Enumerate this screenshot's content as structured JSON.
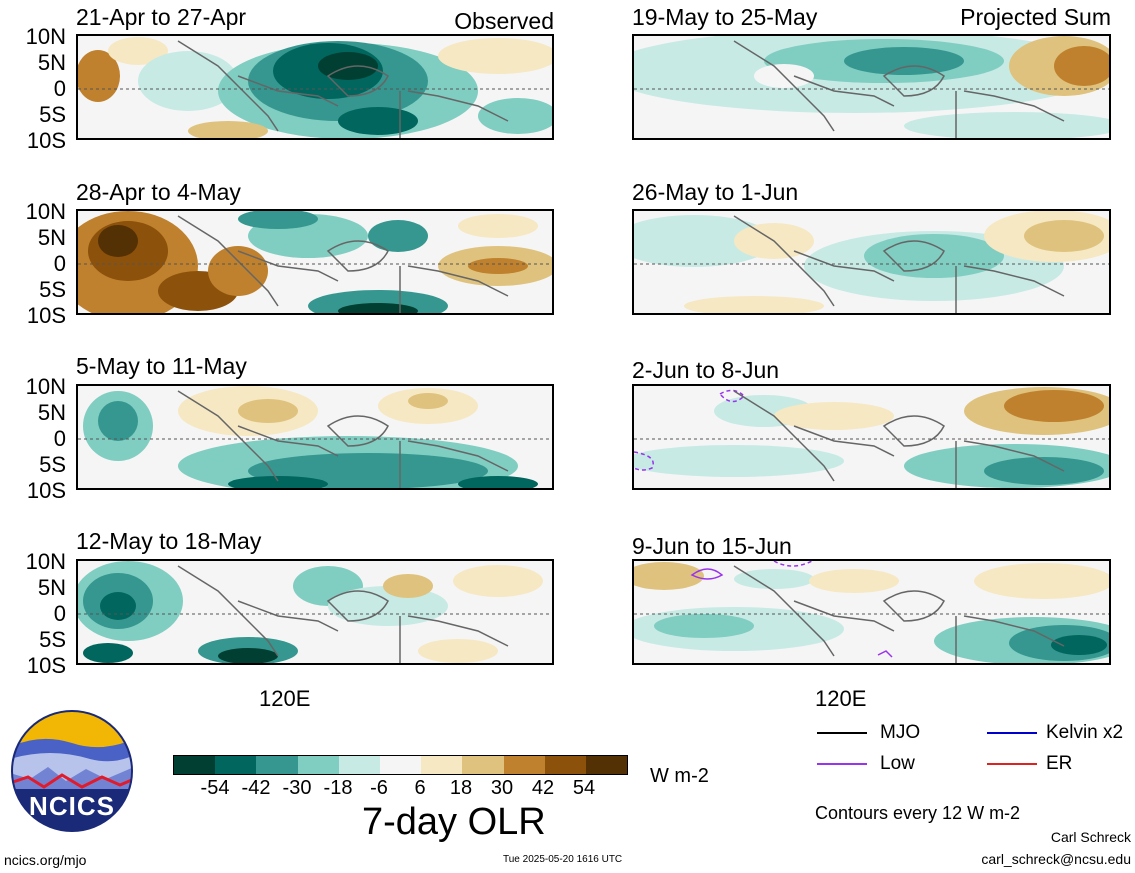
{
  "panels_left": [
    {
      "title": "21-Apr to 27-Apr",
      "tag": "Observed"
    },
    {
      "title": "28-Apr to 4-May",
      "tag": ""
    },
    {
      "title": "5-May to 11-May",
      "tag": ""
    },
    {
      "title": "12-May to 18-May",
      "tag": ""
    }
  ],
  "panels_right": [
    {
      "title": "19-May to 25-May",
      "tag": "Projected Sum"
    },
    {
      "title": "26-May to 1-Jun",
      "tag": ""
    },
    {
      "title": "2-Jun to 8-Jun",
      "tag": ""
    },
    {
      "title": "9-Jun to 15-Jun",
      "tag": ""
    }
  ],
  "lat_labels": [
    "10N",
    "5N",
    "0",
    "5S",
    "10S"
  ],
  "lon_label": "120E",
  "colorbar": {
    "ticks": [
      "-54",
      "-42",
      "-30",
      "-18",
      "-6",
      "6",
      "18",
      "30",
      "42",
      "54"
    ],
    "units": "W m-2",
    "colors": [
      "#013f32",
      "#01665e",
      "#35978f",
      "#80cdc1",
      "#c7eae5",
      "#f5f5f5",
      "#f6e8c3",
      "#dfc27d",
      "#bf812d",
      "#8c510a",
      "#543005"
    ]
  },
  "title_main": "7-day OLR",
  "legend": {
    "items": [
      {
        "label": "MJO",
        "color": "#000000"
      },
      {
        "label": "Kelvin x2",
        "color": "#0000cc"
      },
      {
        "label": "Low",
        "color": "#9933ee"
      },
      {
        "label": "ER",
        "color": "#dd2222"
      }
    ],
    "contours_note": "Contours every 12 W m-2"
  },
  "logo_text": "NCICS",
  "footer": {
    "url": "ncics.org/mjo",
    "timestamp": "Tue 2025-05-20 1616 UTC",
    "author": "Carl Schreck",
    "email": "carl_schreck@ncsu.edu"
  }
}
